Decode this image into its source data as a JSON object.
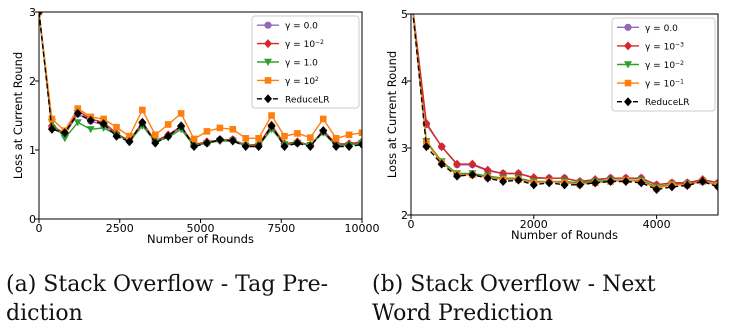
{
  "captions": {
    "a": [
      "(a) Stack Overflow - Tag Pre-",
      "diction"
    ],
    "b": [
      "(b)   Stack   Overflow   -   Next",
      "Word Prediction"
    ]
  },
  "chart_data": [
    {
      "type": "line",
      "xlabel": "Number of Rounds",
      "ylabel": "Loss at Current Round",
      "xlim": [
        0,
        10000
      ],
      "ylim": [
        0,
        3
      ],
      "xticks": [
        0,
        2500,
        5000,
        7500,
        10000
      ],
      "xtick_labels": [
        "0",
        "2500",
        "5000",
        "7500",
        "10000"
      ],
      "yticks": [
        0,
        1,
        2,
        3
      ],
      "ytick_labels": [
        "0",
        "1",
        "2",
        "3"
      ],
      "legend": "top-right",
      "x": [
        0,
        400,
        800,
        1200,
        1600,
        2000,
        2400,
        2800,
        3200,
        3600,
        4000,
        4400,
        4800,
        5200,
        5600,
        6000,
        6400,
        6800,
        7200,
        7600,
        8000,
        8400,
        8800,
        9200,
        9600,
        10000
      ],
      "series": [
        {
          "name": "γ = 0.0",
          "label_html": "&#947; = 0.0",
          "color": "#9467bd",
          "marker": "circle",
          "values": [
            3.0,
            1.32,
            1.22,
            1.52,
            1.42,
            1.36,
            1.22,
            1.15,
            1.38,
            1.12,
            1.2,
            1.33,
            1.06,
            1.1,
            1.15,
            1.15,
            1.07,
            1.06,
            1.33,
            1.07,
            1.1,
            1.07,
            1.26,
            1.08,
            1.08,
            1.1
          ]
        },
        {
          "name": "γ = 10^-2",
          "label_html": "&#947; = 10<tspan baseline-shift=\"super\" font-size=\"6\">&#8722;2</tspan>",
          "color": "#d62728",
          "marker": "diamond",
          "values": [
            3.0,
            1.35,
            1.24,
            1.57,
            1.45,
            1.4,
            1.24,
            1.13,
            1.4,
            1.13,
            1.22,
            1.34,
            1.08,
            1.12,
            1.14,
            1.15,
            1.07,
            1.08,
            1.36,
            1.09,
            1.12,
            1.07,
            1.28,
            1.09,
            1.09,
            1.12
          ]
        },
        {
          "name": "γ = 1.0",
          "label_html": "&#947; = 1.0",
          "color": "#2ca02c",
          "marker": "triangle",
          "values": [
            3.0,
            1.4,
            1.17,
            1.4,
            1.3,
            1.32,
            1.22,
            1.12,
            1.35,
            1.12,
            1.18,
            1.3,
            1.06,
            1.1,
            1.13,
            1.13,
            1.06,
            1.06,
            1.3,
            1.08,
            1.1,
            1.07,
            1.25,
            1.06,
            1.07,
            1.1
          ]
        },
        {
          "name": "γ = 10^2",
          "label_html": "&#947; = 10<tspan baseline-shift=\"super\" font-size=\"6\">2</tspan>",
          "color": "#ff7f0e",
          "marker": "square",
          "values": [
            3.0,
            1.45,
            1.28,
            1.6,
            1.48,
            1.45,
            1.33,
            1.2,
            1.58,
            1.22,
            1.37,
            1.53,
            1.16,
            1.27,
            1.32,
            1.3,
            1.17,
            1.17,
            1.5,
            1.2,
            1.24,
            1.18,
            1.45,
            1.17,
            1.22,
            1.25
          ]
        },
        {
          "name": "ReduceLR",
          "label_html": "ReduceLR",
          "color": "#000000",
          "marker": "diamond",
          "dashed": true,
          "values": [
            3.0,
            1.3,
            1.25,
            1.53,
            1.43,
            1.38,
            1.2,
            1.12,
            1.4,
            1.1,
            1.2,
            1.35,
            1.05,
            1.1,
            1.15,
            1.13,
            1.05,
            1.05,
            1.35,
            1.05,
            1.1,
            1.05,
            1.28,
            1.05,
            1.05,
            1.08
          ]
        }
      ]
    },
    {
      "type": "line",
      "xlabel": "Number of Rounds",
      "ylabel": "Loss at Current Round",
      "xlim": [
        0,
        5000
      ],
      "ylim": [
        2,
        5
      ],
      "xticks": [
        0,
        2000,
        4000
      ],
      "xtick_labels": [
        "0",
        "2000",
        "4000"
      ],
      "yticks": [
        2,
        3,
        4,
        5
      ],
      "ytick_labels": [
        "2",
        "3",
        "4",
        "5"
      ],
      "legend": "top-right",
      "x": [
        0,
        250,
        500,
        750,
        1000,
        1250,
        1500,
        1750,
        2000,
        2250,
        2500,
        2750,
        3000,
        3250,
        3500,
        3750,
        4000,
        4250,
        4500,
        4750,
        5000
      ],
      "series": [
        {
          "name": "γ = 0.0",
          "label_html": "&#947; = 0.0",
          "color": "#9467bd",
          "marker": "circle",
          "values": [
            5.3,
            3.35,
            3.02,
            2.75,
            2.75,
            2.66,
            2.62,
            2.62,
            2.55,
            2.55,
            2.55,
            2.5,
            2.52,
            2.55,
            2.55,
            2.55,
            2.45,
            2.48,
            2.48,
            2.52,
            2.48
          ]
        },
        {
          "name": "γ = 10^-3",
          "label_html": "&#947; = 10<tspan baseline-shift=\"super\" font-size=\"6\">&#8722;3</tspan>",
          "color": "#d62728",
          "marker": "diamond",
          "values": [
            5.3,
            3.37,
            3.02,
            2.76,
            2.76,
            2.67,
            2.62,
            2.62,
            2.56,
            2.55,
            2.55,
            2.5,
            2.53,
            2.55,
            2.55,
            2.55,
            2.45,
            2.48,
            2.48,
            2.53,
            2.48
          ]
        },
        {
          "name": "γ = 10^-2",
          "label_html": "&#947; = 10<tspan baseline-shift=\"super\" font-size=\"6\">&#8722;2</tspan>",
          "color": "#2ca02c",
          "marker": "triangle",
          "values": [
            5.3,
            3.1,
            2.8,
            2.62,
            2.62,
            2.58,
            2.55,
            2.55,
            2.5,
            2.5,
            2.5,
            2.48,
            2.5,
            2.52,
            2.52,
            2.52,
            2.42,
            2.46,
            2.46,
            2.5,
            2.45
          ]
        },
        {
          "name": "γ = 10^-1",
          "label_html": "&#947; = 10<tspan baseline-shift=\"super\" font-size=\"6\">&#8722;1</tspan>",
          "color": "#ff7f0e",
          "marker": "square",
          "values": [
            5.3,
            3.08,
            2.78,
            2.6,
            2.6,
            2.56,
            2.53,
            2.53,
            2.48,
            2.5,
            2.48,
            2.46,
            2.48,
            2.5,
            2.52,
            2.5,
            2.4,
            2.45,
            2.45,
            2.5,
            2.44
          ]
        },
        {
          "name": "ReduceLR",
          "label_html": "ReduceLR",
          "color": "#000000",
          "marker": "diamond",
          "dashed": true,
          "values": [
            5.3,
            3.02,
            2.76,
            2.58,
            2.6,
            2.55,
            2.5,
            2.52,
            2.45,
            2.48,
            2.45,
            2.45,
            2.48,
            2.5,
            2.5,
            2.48,
            2.38,
            2.42,
            2.44,
            2.5,
            2.42
          ]
        }
      ]
    }
  ]
}
